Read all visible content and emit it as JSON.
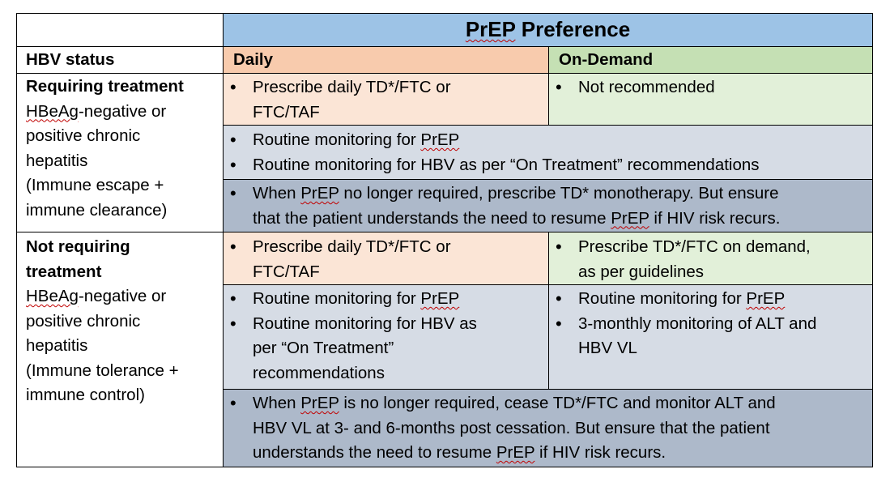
{
  "header": {
    "title_prefix": "PrEP",
    "title_suffix": " Preference",
    "hbv_status": "HBV status",
    "daily": "Daily",
    "on_demand": "On-Demand"
  },
  "requiring": {
    "heading": "Requiring treatment",
    "desc_abbrev": "HBeAg",
    "desc_rest": "-negative or",
    "lines": [
      "positive chronic",
      "hepatitis",
      "(Immune escape +",
      "immune clearance)"
    ],
    "daily_bullet_1": "Prescribe daily TD*/FTC or",
    "daily_bullet_2": "FTC/TAF",
    "on_demand_bullet": "Not recommended",
    "monitor_1_prefix": "Routine monitoring for ",
    "monitor_1_term": "PrEP",
    "monitor_2": "Routine monitoring for HBV as per “On Treatment” recommendations",
    "when_1a": "When ",
    "when_1b": "PrEP",
    "when_1c": " no longer required, prescribe TD* monotherapy. But ensure",
    "when_2a": "that the patient understands the need to resume ",
    "when_2b": "PrEP",
    "when_2c": " if HIV risk recurs."
  },
  "not_requiring": {
    "heading_1": "Not requiring",
    "heading_2": "treatment",
    "desc_abbrev": "HBeAg",
    "desc_rest": "-negative or",
    "lines": [
      "positive chronic",
      "hepatitis",
      "(Immune tolerance +",
      "immune control)"
    ],
    "daily_bullet_1": "Prescribe daily TD*/FTC or",
    "daily_bullet_2": "FTC/TAF",
    "on_demand_bullet_1": "Prescribe TD*/FTC on demand,",
    "on_demand_bullet_2": "as per guidelines",
    "daily_monitor_1_prefix": "Routine monitoring for ",
    "daily_monitor_1_term": "PrEP",
    "daily_monitor_2": [
      "Routine monitoring for HBV as",
      "per “On Treatment”",
      "recommendations"
    ],
    "od_monitor_1_prefix": "Routine monitoring for ",
    "od_monitor_1_term": "PrEP",
    "od_monitor_2": [
      "3-monthly monitoring of ALT and",
      "HBV VL"
    ],
    "when_1a": "When ",
    "when_1b": "PrEP",
    "when_1c": " is no longer required, cease TD*/FTC and monitor ALT and",
    "when_2": "HBV VL at 3- and 6-months post cessation. But ensure that the patient",
    "when_3a": "understands the need to resume ",
    "when_3b": "PrEP",
    "when_3c": " if HIV risk recurs."
  },
  "colors": {
    "header_blue": "#9dc3e6",
    "daily_peach": "#f8cbad",
    "daily_light_peach": "#fbe5d6",
    "on_demand_green": "#c5e0b4",
    "on_demand_light_green": "#e2f0d9",
    "monitor_grey": "#d6dce5",
    "when_dark_grey": "#adb9ca",
    "spellcheck_red": "#c00000"
  }
}
